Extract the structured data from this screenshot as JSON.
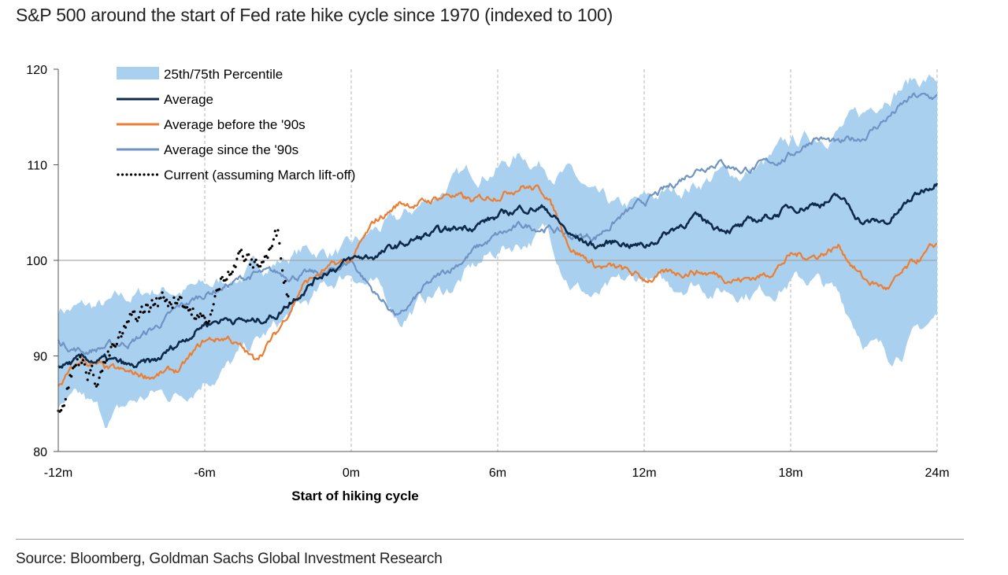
{
  "title": "S&P 500 around the start of Fed rate hike cycle since 1970 (indexed to 100)",
  "source": "Source: Bloomberg, Goldman Sachs Global Investment Research",
  "chart_data": {
    "type": "line",
    "xlabel": "Start of hiking cycle",
    "ylabel": "",
    "xlim": [
      -12,
      24
    ],
    "ylim": [
      80,
      120
    ],
    "x_ticks": [
      -12,
      -6,
      0,
      6,
      12,
      18,
      24
    ],
    "x_tick_labels": [
      "-12m",
      "-6m",
      "0m",
      "6m",
      "12m",
      "18m",
      "24m"
    ],
    "y_ticks": [
      80,
      90,
      100,
      110,
      120
    ],
    "y_tick_labels": [
      "80",
      "90",
      "100",
      "110",
      "120"
    ],
    "grid": "vertical dashed at each x tick",
    "reference_line": 100,
    "legend_position": "top-left",
    "colors": {
      "band": "#a9d1ef",
      "average": "#0d2a4a",
      "before_90s": "#ed7d31",
      "since_90s": "#6f93c4",
      "current": "#000000"
    },
    "band": {
      "name": "25th/75th Percentile",
      "x": [
        -12,
        -11,
        -10,
        -9,
        -8,
        -7,
        -6,
        -5,
        -4,
        -3,
        -2,
        -1,
        0,
        1,
        2,
        3,
        4,
        5,
        6,
        7,
        8,
        9,
        10,
        11,
        12,
        13,
        14,
        15,
        16,
        17,
        18,
        19,
        20,
        21,
        22,
        23,
        24
      ],
      "low": [
        84,
        85,
        83,
        85,
        86,
        86,
        88,
        89,
        91,
        93,
        95,
        97,
        99,
        97,
        94,
        96,
        97,
        99,
        101,
        102,
        103,
        98,
        96,
        97,
        98,
        97,
        98,
        97,
        97,
        97,
        98,
        98,
        96,
        92,
        90,
        92,
        94
      ],
      "high": [
        95,
        95,
        95,
        96,
        97,
        97,
        97,
        98,
        99,
        100,
        101,
        101,
        101,
        103,
        104,
        106,
        108,
        109,
        110,
        111,
        110,
        109,
        106,
        105,
        106,
        107,
        108,
        109,
        109,
        110,
        112,
        113,
        114,
        115,
        118,
        119,
        119
      ]
    },
    "series": [
      {
        "name": "Average",
        "x": [
          -12,
          -11,
          -10,
          -9,
          -8,
          -7,
          -6,
          -5,
          -4,
          -3,
          -2,
          -1,
          0,
          1,
          2,
          3,
          4,
          5,
          6,
          7,
          8,
          9,
          10,
          11,
          12,
          13,
          14,
          15,
          16,
          17,
          18,
          19,
          20,
          21,
          22,
          23,
          24
        ],
        "y": [
          89,
          89.5,
          89.5,
          88.7,
          89.3,
          91.5,
          93.5,
          94,
          93.5,
          94.5,
          97,
          99,
          100,
          100.5,
          101.5,
          102.5,
          103,
          103.8,
          104.5,
          105.5,
          105.5,
          102.5,
          101.5,
          102,
          101.5,
          103,
          104.5,
          103.5,
          103.5,
          104.5,
          105.5,
          106,
          106.5,
          104,
          104,
          106.5,
          108.5
        ]
      },
      {
        "name": "Average before the '90s",
        "x": [
          -12,
          -11,
          -10,
          -9,
          -8,
          -7,
          -6,
          -5,
          -4,
          -3,
          -2,
          -1,
          0,
          1,
          2,
          3,
          4,
          5,
          6,
          7,
          8,
          9,
          10,
          11,
          12,
          13,
          14,
          15,
          16,
          17,
          18,
          19,
          20,
          21,
          22,
          23,
          24
        ],
        "y": [
          87,
          89.5,
          88.5,
          88,
          88,
          88.5,
          91.5,
          92,
          89.5,
          92.5,
          97.5,
          99,
          100,
          104,
          106,
          106,
          107,
          106,
          107,
          108,
          107,
          101.5,
          99.5,
          99,
          98,
          98.5,
          99,
          98.5,
          98,
          98.5,
          100.5,
          100.5,
          101.5,
          98,
          97,
          99.5,
          101.5
        ]
      },
      {
        "name": "Average since the '90s",
        "x": [
          -12,
          -11,
          -10,
          -9,
          -8,
          -7,
          -6,
          -5,
          -4,
          -3,
          -2,
          -1,
          0,
          1,
          2,
          3,
          4,
          5,
          6,
          7,
          8,
          9,
          10,
          11,
          12,
          13,
          14,
          15,
          16,
          17,
          18,
          19,
          20,
          21,
          22,
          23,
          24
        ],
        "y": [
          91.5,
          90.5,
          91,
          91.5,
          93,
          95,
          96.5,
          97.5,
          98.5,
          98.5,
          98.5,
          98.5,
          100,
          96.5,
          94,
          97,
          99,
          101,
          102.5,
          103.5,
          103.5,
          102.5,
          102.5,
          104.5,
          106,
          107.5,
          109.5,
          110.5,
          109.5,
          110,
          111,
          113,
          112,
          113,
          115,
          117,
          117
        ]
      },
      {
        "name": "Current (assuming March lift-off)",
        "x": [
          -12,
          -11.5,
          -11,
          -10.5,
          -10,
          -9.5,
          -9,
          -8.5,
          -8,
          -7.5,
          -7,
          -6.5,
          -6,
          -5.5,
          -5,
          -4.5,
          -4,
          -3.5,
          -3,
          -2.5
        ],
        "y": [
          85,
          89,
          90,
          88,
          90,
          91,
          93,
          94.5,
          95.5,
          96,
          97,
          95,
          93,
          96,
          100,
          101,
          99,
          100.5,
          102.5,
          96
        ]
      }
    ]
  }
}
